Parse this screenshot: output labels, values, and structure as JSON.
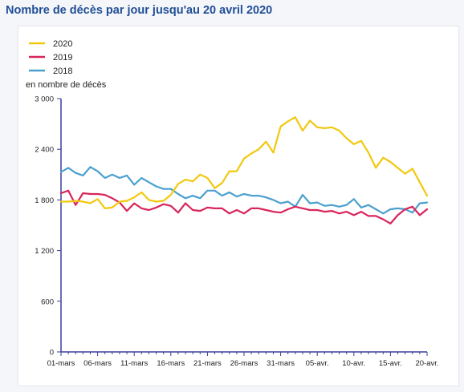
{
  "page": {
    "title": "Nombre de décès par jour jusqu'au 20 avril 2020"
  },
  "chart_data": {
    "type": "line",
    "title": "Nombre de décès par jour jusqu'au 20 avril 2020",
    "ylabel": "en nombre de décès",
    "xlabel": "",
    "ylim": [
      0,
      3000
    ],
    "yticks": [
      0,
      600,
      1200,
      1800,
      2400,
      3000
    ],
    "ytick_labels": [
      "0",
      "600",
      "1 200",
      "1 800",
      "2 400",
      "3 000"
    ],
    "x": [
      "01-mars",
      "02-mars",
      "03-mars",
      "04-mars",
      "05-mars",
      "06-mars",
      "07-mars",
      "08-mars",
      "09-mars",
      "10-mars",
      "11-mars",
      "12-mars",
      "13-mars",
      "14-mars",
      "15-mars",
      "16-mars",
      "17-mars",
      "18-mars",
      "19-mars",
      "20-mars",
      "21-mars",
      "22-mars",
      "23-mars",
      "24-mars",
      "25-mars",
      "26-mars",
      "27-mars",
      "28-mars",
      "29-mars",
      "30-mars",
      "31-mars",
      "01-avr.",
      "02-avr.",
      "03-avr.",
      "04-avr.",
      "05-avr.",
      "06-avr.",
      "07-avr.",
      "08-avr.",
      "09-avr.",
      "10-avr.",
      "11-avr.",
      "12-avr.",
      "13-avr.",
      "14-avr.",
      "15-avr.",
      "16-avr.",
      "17-avr.",
      "18-avr.",
      "19-avr.",
      "20-avr."
    ],
    "xtick_labels": [
      "01-mars",
      "06-mars",
      "11-mars",
      "16-mars",
      "21-mars",
      "26-mars",
      "31-mars",
      "05-avr.",
      "10-avr.",
      "15-avr.",
      "20-avr."
    ],
    "xtick_every": 5,
    "legend_position": "top-left",
    "grid": false,
    "series": [
      {
        "name": "2020",
        "color": "#f2c80f",
        "values": [
          1780,
          1780,
          1790,
          1780,
          1760,
          1810,
          1700,
          1710,
          1780,
          1790,
          1830,
          1890,
          1800,
          1780,
          1790,
          1860,
          1990,
          2040,
          2020,
          2100,
          2060,
          1940,
          2000,
          2140,
          2140,
          2290,
          2350,
          2400,
          2490,
          2360,
          2670,
          2730,
          2780,
          2620,
          2740,
          2660,
          2650,
          2660,
          2620,
          2530,
          2460,
          2500,
          2360,
          2180,
          2300,
          2250,
          2180,
          2110,
          2170,
          2010,
          1850
        ]
      },
      {
        "name": "2019",
        "color": "#d9245b",
        "values": [
          1880,
          1910,
          1740,
          1880,
          1870,
          1870,
          1860,
          1820,
          1770,
          1670,
          1760,
          1700,
          1680,
          1710,
          1750,
          1730,
          1650,
          1760,
          1680,
          1670,
          1710,
          1700,
          1700,
          1640,
          1680,
          1640,
          1700,
          1700,
          1680,
          1660,
          1650,
          1690,
          1720,
          1700,
          1680,
          1680,
          1660,
          1670,
          1640,
          1660,
          1620,
          1660,
          1610,
          1610,
          1570,
          1520,
          1620,
          1690,
          1720,
          1620,
          1690
        ]
      },
      {
        "name": "2018",
        "color": "#4aa0cf",
        "values": [
          2130,
          2180,
          2120,
          2090,
          2190,
          2140,
          2060,
          2100,
          2060,
          2090,
          1980,
          2060,
          2010,
          1960,
          1930,
          1930,
          1870,
          1820,
          1850,
          1820,
          1910,
          1910,
          1850,
          1890,
          1840,
          1870,
          1850,
          1850,
          1830,
          1800,
          1760,
          1780,
          1720,
          1860,
          1760,
          1770,
          1730,
          1740,
          1720,
          1740,
          1810,
          1710,
          1740,
          1690,
          1640,
          1690,
          1700,
          1690,
          1650,
          1760,
          1770
        ]
      }
    ]
  }
}
